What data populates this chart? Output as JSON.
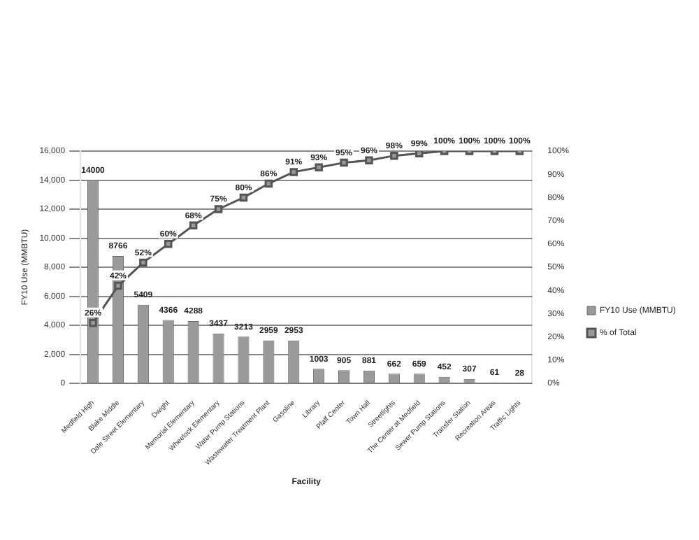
{
  "chart_data": {
    "type": "bar",
    "xlabel": "Facility",
    "ylabel": "FY10 Use (MMBTU)",
    "categories": [
      "Medfield High",
      "Blake Middle",
      "Dale Street Elementary",
      "Dwight",
      "Memorial Elementary",
      "Wheelock Elementary",
      "Water Pump Stations",
      "Wastewater Treatment Plant",
      "Gasoline",
      "Library",
      "Pfaff Center",
      "Town Hall",
      "Streetlights",
      "The Center at Medfield",
      "Sewer Pump Stations",
      "Transfer Station",
      "Recreation Areas",
      "Traffic Lights"
    ],
    "series": [
      {
        "name": "FY10 Use (MMBTU)",
        "type": "bar",
        "color": "#9a9a9a",
        "values": [
          14000,
          8766,
          5409,
          4366,
          4288,
          3437,
          3213,
          2959,
          2953,
          1003,
          905,
          881,
          662,
          659,
          452,
          307,
          61,
          28
        ]
      },
      {
        "name": "% of Total",
        "type": "line",
        "axis": "y2",
        "color": "#555555",
        "values": [
          26,
          42,
          52,
          60,
          68,
          75,
          80,
          86,
          91,
          93,
          95,
          96,
          98,
          99,
          100,
          100,
          100,
          100
        ],
        "value_labels": [
          "26%",
          "42%",
          "52%",
          "60%",
          "68%",
          "75%",
          "80%",
          "86%",
          "91%",
          "93%",
          "95%",
          "96%",
          "98%",
          "99%",
          "100%",
          "100%",
          "100%",
          "100%"
        ]
      }
    ],
    "data_labels": true,
    "ylim": [
      0,
      16000
    ],
    "yticks": [
      {
        "value": 0,
        "label": "0"
      },
      {
        "value": 2000,
        "label": "2,000"
      },
      {
        "value": 4000,
        "label": "4,000"
      },
      {
        "value": 6000,
        "label": "6,000"
      },
      {
        "value": 8000,
        "label": "8,000"
      },
      {
        "value": 10000,
        "label": "10,000"
      },
      {
        "value": 12000,
        "label": "12,000"
      },
      {
        "value": 14000,
        "label": "14,000"
      },
      {
        "value": 16000,
        "label": "16,000"
      }
    ],
    "y2lim": [
      0,
      100
    ],
    "y2ticks": [
      {
        "value": 0,
        "label": "0%"
      },
      {
        "value": 10,
        "label": "10%"
      },
      {
        "value": 20,
        "label": "20%"
      },
      {
        "value": 30,
        "label": "30%"
      },
      {
        "value": 40,
        "label": "40%"
      },
      {
        "value": 50,
        "label": "50%"
      },
      {
        "value": 60,
        "label": "60%"
      },
      {
        "value": 70,
        "label": "70%"
      },
      {
        "value": 80,
        "label": "80%"
      },
      {
        "value": 90,
        "label": "90%"
      },
      {
        "value": 100,
        "label": "100%"
      }
    ],
    "grid": "y",
    "legend": "right",
    "marker": "square",
    "line_style": "solid"
  }
}
